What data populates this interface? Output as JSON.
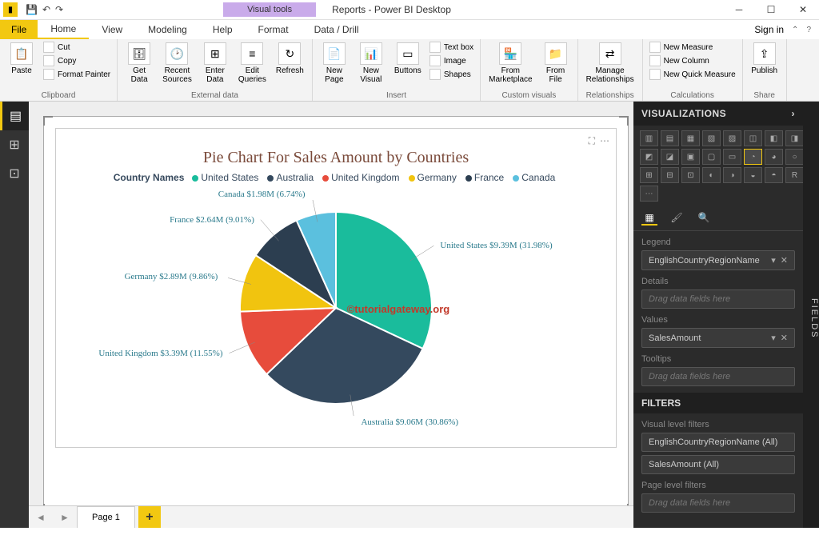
{
  "window": {
    "title": "Reports - Power BI Desktop",
    "visual_tools": "Visual tools"
  },
  "tabs": {
    "file": "File",
    "home": "Home",
    "view": "View",
    "modeling": "Modeling",
    "help": "Help",
    "format": "Format",
    "datadrill": "Data / Drill",
    "signin": "Sign in"
  },
  "ribbon": {
    "clipboard": {
      "label": "Clipboard",
      "paste": "Paste",
      "cut": "Cut",
      "copy": "Copy",
      "format_painter": "Format Painter"
    },
    "external": {
      "label": "External data",
      "get_data": "Get\nData",
      "recent": "Recent\nSources",
      "enter": "Enter\nData",
      "edit": "Edit\nQueries",
      "refresh": "Refresh"
    },
    "insert": {
      "label": "Insert",
      "new_page": "New\nPage",
      "new_visual": "New\nVisual",
      "buttons": "Buttons",
      "textbox": "Text box",
      "image": "Image",
      "shapes": "Shapes"
    },
    "custom": {
      "label": "Custom visuals",
      "marketplace": "From\nMarketplace",
      "file": "From\nFile"
    },
    "rel": {
      "label": "Relationships",
      "manage": "Manage\nRelationships"
    },
    "calc": {
      "label": "Calculations",
      "new_measure": "New Measure",
      "new_column": "New Column",
      "quick": "New Quick Measure"
    },
    "share": {
      "label": "Share",
      "publish": "Publish"
    }
  },
  "chart": {
    "title": "Pie Chart For Sales Amount by Countries",
    "legend_title": "Country Names",
    "watermark": "©tutorialgateway.org",
    "type": "pie",
    "background_color": "#ffffff",
    "title_color": "#7a4a3a",
    "title_fontsize": 20,
    "label_color": "#2a7a8c",
    "slices": [
      {
        "name": "United States",
        "value": 9.39,
        "pct": 31.98,
        "color": "#1abc9c",
        "label": "United States $9.39M (31.98%)"
      },
      {
        "name": "Australia",
        "value": 9.06,
        "pct": 30.86,
        "color": "#34495e",
        "label": "Australia $9.06M (30.86%)"
      },
      {
        "name": "United Kingdom",
        "value": 3.39,
        "pct": 11.55,
        "color": "#e74c3c",
        "label": "United Kingdom $3.39M (11.55%)"
      },
      {
        "name": "Germany",
        "value": 2.89,
        "pct": 9.86,
        "color": "#f1c40f",
        "label": "Germany $2.89M (9.86%)"
      },
      {
        "name": "France",
        "value": 2.64,
        "pct": 9.01,
        "color": "#2c3e50",
        "label": "France $2.64M (9.01%)"
      },
      {
        "name": "Canada",
        "value": 1.98,
        "pct": 6.74,
        "color": "#5bc0de",
        "label": "Canada $1.98M (6.74%)"
      }
    ]
  },
  "pagetab": {
    "page1": "Page 1"
  },
  "viz_panel": {
    "title": "VISUALIZATIONS",
    "legend": "Legend",
    "legend_field": "EnglishCountryRegionName",
    "details": "Details",
    "details_ph": "Drag data fields here",
    "values": "Values",
    "values_field": "SalesAmount",
    "tooltips": "Tooltips",
    "tooltips_ph": "Drag data fields here",
    "filters": "FILTERS",
    "vlf": "Visual level filters",
    "vlf1": "EnglishCountryRegionName (All)",
    "vlf2": "SalesAmount (All)",
    "plf": "Page level filters",
    "plf_ph": "Drag data fields here"
  },
  "fields_rail": "FIELDS"
}
